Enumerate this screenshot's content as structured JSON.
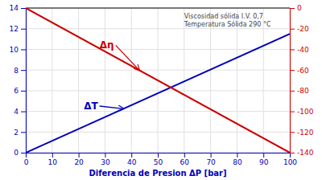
{
  "chart_data": {
    "type": "line",
    "xlabel": "Diferencia de Presion  ΔP [bar]",
    "annotation": "Viscosidad sólida I.V. 0,7\nTemperatura Sólida 290 °C",
    "x": [
      0,
      100
    ],
    "xlim": [
      0,
      100
    ],
    "xticks": [
      0,
      10,
      20,
      30,
      40,
      50,
      60,
      70,
      80,
      90,
      100
    ],
    "ylim": [
      0,
      14
    ],
    "yticks": [
      0,
      2,
      4,
      6,
      8,
      10,
      12,
      14
    ],
    "y2lim": [
      -140,
      0
    ],
    "y2ticks": [
      0,
      -20,
      -40,
      -60,
      -80,
      -100,
      -120,
      -140
    ],
    "grid": true,
    "series": [
      {
        "name": "ΔT",
        "color": "#0000BB",
        "values": [
          0,
          11.5
        ]
      },
      {
        "name": "Δη",
        "color": "#CC0000",
        "values": [
          0,
          -140
        ],
        "axis": "y2"
      }
    ]
  }
}
